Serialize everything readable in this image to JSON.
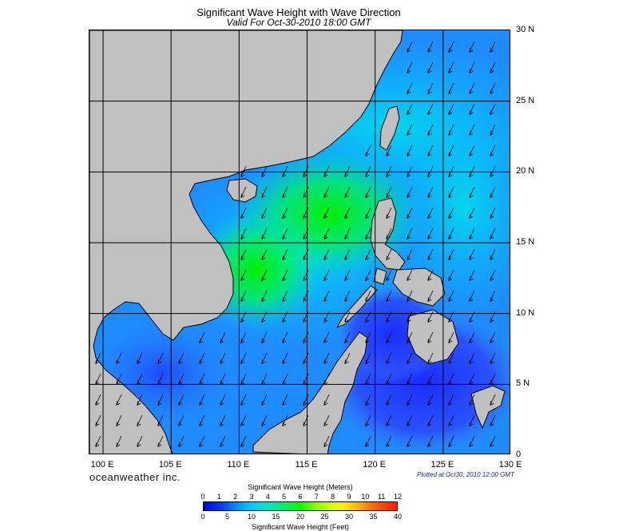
{
  "title": "Significant Wave Height with Wave Direction",
  "subtitle": "Valid For Oct-30-2010 18:00 GMT",
  "map": {
    "lon_range": [
      99,
      130
    ],
    "lat_range": [
      0,
      30
    ],
    "lat_labels": [
      "30 N",
      "25 N",
      "20 N",
      "15 N",
      "10 N",
      "5 N",
      "0"
    ],
    "lat_values": [
      30,
      25,
      20,
      15,
      10,
      5,
      0
    ],
    "lon_labels": [
      "100 E",
      "105 E",
      "110 E",
      "115 E",
      "120 E",
      "125 E",
      "130 E"
    ],
    "lon_values": [
      100,
      105,
      110,
      115,
      120,
      125,
      130
    ],
    "land_color": "#c0c0c0",
    "grid_color": "#000000",
    "arrow_color": "#000000",
    "wave_direction": "north-east (arrows point south-west)"
  },
  "branding": "oceanweather inc.",
  "plotted_note": "Plotted at Oct30, 2010 12:00 GMT",
  "colorbar": {
    "title_meters": "Significant Wave Height (Meters)",
    "title_feet": "Significant Wave Height (Feet)",
    "meter_ticks": [
      "0",
      "1",
      "2",
      "3",
      "4",
      "5",
      "6",
      "7",
      "8",
      "9",
      "10",
      "11",
      "12"
    ],
    "feet_ticks": [
      "0",
      "5",
      "10",
      "15",
      "20",
      "25",
      "30",
      "35",
      "40"
    ],
    "colors": [
      "#0000e8",
      "#0099ff",
      "#00e8cc",
      "#00ff00",
      "#ccff00",
      "#ffb000",
      "#ff1a00"
    ]
  }
}
